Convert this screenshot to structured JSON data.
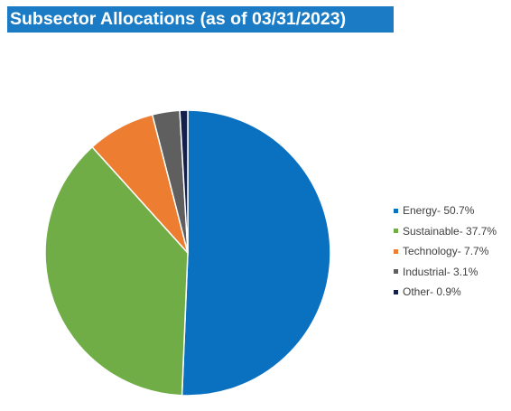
{
  "header": {
    "title": "Subsector Allocations (as of 03/31/2023)",
    "background": "#1b7bc4"
  },
  "chart_data": {
    "type": "pie",
    "title": "Subsector Allocations (as of 03/31/2023)",
    "legend_position": "right",
    "slices": [
      {
        "label": "Energy- 50.7%",
        "category": "Energy",
        "value": 50.7,
        "color": "#0a70c0"
      },
      {
        "label": "Sustainable- 37.7%",
        "category": "Sustainable",
        "value": 37.7,
        "color": "#70ad47"
      },
      {
        "label": "Technology- 7.7%",
        "category": "Technology",
        "value": 7.7,
        "color": "#ed7d31"
      },
      {
        "label": "Industrial- 3.1%",
        "category": "Industrial",
        "value": 3.1,
        "color": "#5f5f5f"
      },
      {
        "label": "Other- 0.9%",
        "category": "Other",
        "value": 0.9,
        "color": "#14204a"
      }
    ]
  }
}
